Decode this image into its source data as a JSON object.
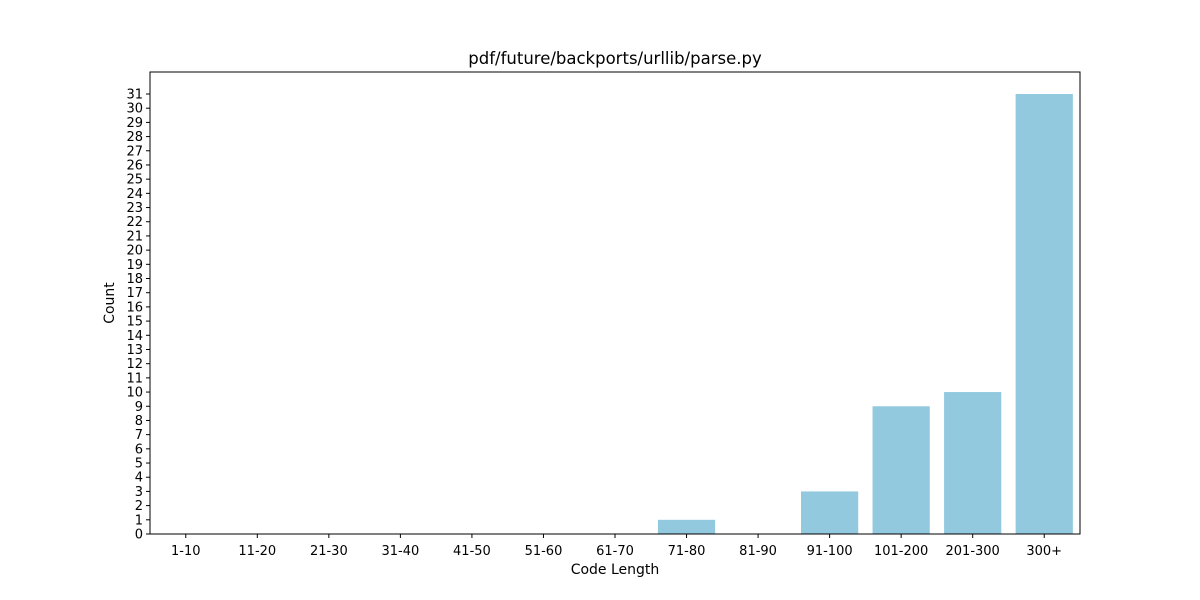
{
  "chart_data": {
    "type": "bar",
    "title": "pdf/future/backports/urllib/parse.py",
    "xlabel": "Code Length",
    "ylabel": "Count",
    "categories": [
      "1-10",
      "11-20",
      "21-30",
      "31-40",
      "41-50",
      "51-60",
      "61-70",
      "71-80",
      "81-90",
      "91-100",
      "101-200",
      "201-300",
      "300+"
    ],
    "values": [
      0,
      0,
      0,
      0,
      0,
      0,
      0,
      1,
      0,
      3,
      9,
      10,
      31
    ],
    "ylim": [
      0,
      32.55
    ],
    "yticks": [
      0,
      1,
      2,
      3,
      4,
      5,
      6,
      7,
      8,
      9,
      10,
      11,
      12,
      13,
      14,
      15,
      16,
      17,
      18,
      19,
      20,
      21,
      22,
      23,
      24,
      25,
      26,
      27,
      28,
      29,
      30,
      31
    ],
    "bar_color": "#92c9df",
    "grid": false,
    "legend": "none"
  }
}
